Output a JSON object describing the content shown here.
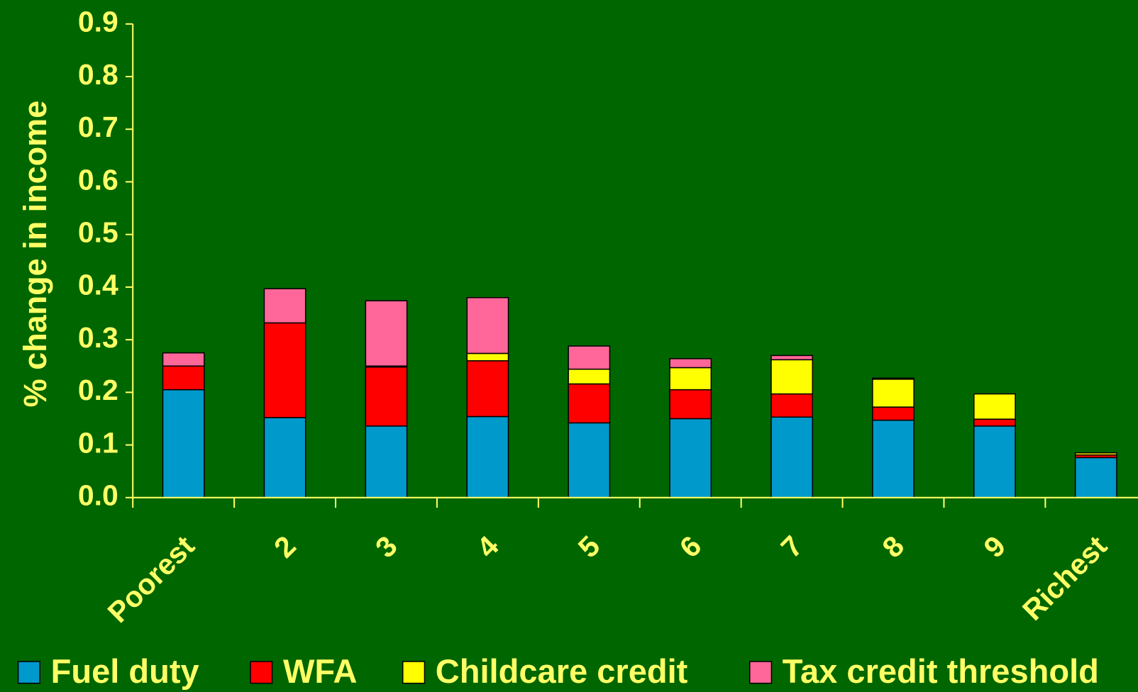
{
  "chart_data": {
    "type": "bar",
    "stacked": true,
    "y_label": "% change in income",
    "categories": [
      "Poorest",
      "2",
      "3",
      "4",
      "5",
      "6",
      "7",
      "8",
      "9",
      "Richest"
    ],
    "series": [
      {
        "name": "Fuel duty",
        "color": "#0099cc",
        "values": [
          0.205,
          0.152,
          0.136,
          0.154,
          0.142,
          0.15,
          0.153,
          0.147,
          0.136,
          0.076
        ]
      },
      {
        "name": "WFA",
        "color": "#ff0000",
        "values": [
          0.045,
          0.18,
          0.112,
          0.106,
          0.074,
          0.055,
          0.044,
          0.025,
          0.013,
          0.005
        ]
      },
      {
        "name": "Childcare credit",
        "color": "#ffff00",
        "values": [
          0,
          0,
          0.002,
          0.014,
          0.028,
          0.042,
          0.065,
          0.053,
          0.048,
          0.004
        ]
      },
      {
        "name": "Tax credit threshold",
        "color": "#ff6699",
        "values": [
          0.025,
          0.065,
          0.124,
          0.106,
          0.044,
          0.017,
          0.008,
          0.002,
          0,
          0
        ]
      }
    ],
    "ylim": [
      0,
      0.9
    ],
    "yticks": [
      {
        "value": 0,
        "label": "0.0"
      },
      0.1,
      0.2,
      0.3,
      0.4,
      0.5,
      0.6,
      0.7,
      0.8,
      0.9
    ],
    "legend": "bottom"
  }
}
